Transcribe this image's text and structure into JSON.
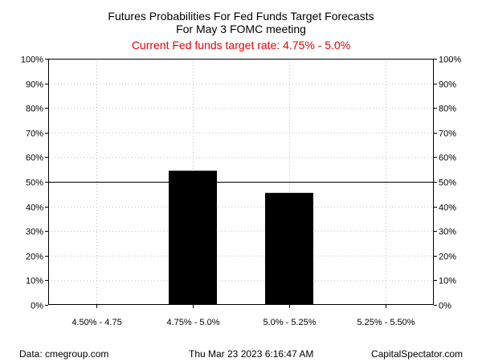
{
  "chart_data": {
    "type": "bar",
    "title": "Futures Probabilities For Fed Funds Target Forecasts",
    "subtitle": "For May 3 FOMC meeting",
    "subtitle2": "Current Fed funds target rate: 4.75% - 5.0%",
    "categories": [
      "4.50% - 4.75",
      "4.75% - 5.0%",
      "5.0% - 5.25%",
      "5.25% - 5.50%"
    ],
    "values": [
      0,
      54.5,
      45.5,
      0
    ],
    "ylim": [
      0,
      100
    ],
    "y_ticks": [
      0,
      10,
      20,
      30,
      40,
      50,
      60,
      70,
      80,
      90,
      100
    ],
    "y_tick_labels": [
      "0%",
      "10%",
      "20%",
      "30%",
      "40%",
      "50%",
      "60%",
      "70%",
      "80%",
      "90%",
      "100%"
    ],
    "reference_line": 50,
    "grid": "dotted",
    "xlabel": "",
    "ylabel": ""
  },
  "footer": {
    "source": "Data: cmegroup.com",
    "timestamp": "Thu Mar 23 2023 6:16:47 AM",
    "brand": "CapitalSpectator.com"
  },
  "colors": {
    "bar": "#000000",
    "subtitle2": "#ee0000",
    "grid": "#bbbbbb"
  }
}
